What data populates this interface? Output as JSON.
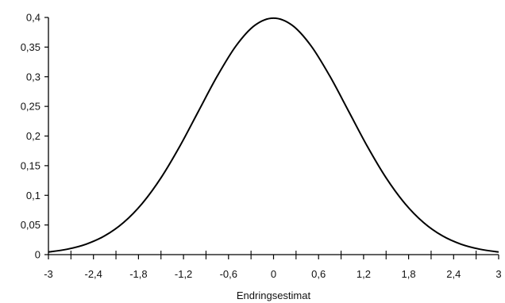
{
  "chart_data": {
    "type": "line",
    "title": "",
    "xlabel": "Endringsestimat",
    "ylabel": "",
    "xlim": [
      -3,
      3
    ],
    "ylim": [
      0,
      0.4
    ],
    "grid": false,
    "legend": "none",
    "x_ticks": [
      -3,
      -2.4,
      -1.8,
      -1.2,
      -0.6,
      0,
      0.6,
      1.2,
      1.8,
      2.4,
      3
    ],
    "x_tick_labels": [
      "-3",
      "-2,4",
      "-1,8",
      "-1,2",
      "-0,6",
      "0",
      "0,6",
      "1,2",
      "1,8",
      "2,4",
      "3"
    ],
    "x_minor_ticks": [
      -2.7,
      -2.1,
      -1.5,
      -0.9,
      -0.3,
      0.3,
      0.9,
      1.5,
      2.1,
      2.7
    ],
    "y_ticks": [
      0,
      0.05,
      0.1,
      0.15,
      0.2,
      0.25,
      0.3,
      0.35,
      0.4
    ],
    "y_tick_labels": [
      "0",
      "0,05",
      "0,1",
      "0,15",
      "0,2",
      "0,25",
      "0,3",
      "0,35",
      "0,4"
    ],
    "series": [
      {
        "color": "#000000",
        "x": [
          -3,
          -2.75,
          -2.5,
          -2.25,
          -2,
          -1.75,
          -1.5,
          -1.25,
          -1,
          -0.75,
          -0.5,
          -0.25,
          0,
          0.25,
          0.5,
          0.75,
          1,
          1.25,
          1.5,
          1.75,
          2,
          2.25,
          2.5,
          2.75,
          3
        ],
        "y": [
          0.0044,
          0.0091,
          0.0175,
          0.0317,
          0.054,
          0.0863,
          0.1295,
          0.1826,
          0.242,
          0.3011,
          0.3521,
          0.3867,
          0.3989,
          0.3867,
          0.3521,
          0.3011,
          0.242,
          0.1826,
          0.1295,
          0.0863,
          0.054,
          0.0317,
          0.0175,
          0.0091,
          0.0044
        ]
      }
    ]
  }
}
